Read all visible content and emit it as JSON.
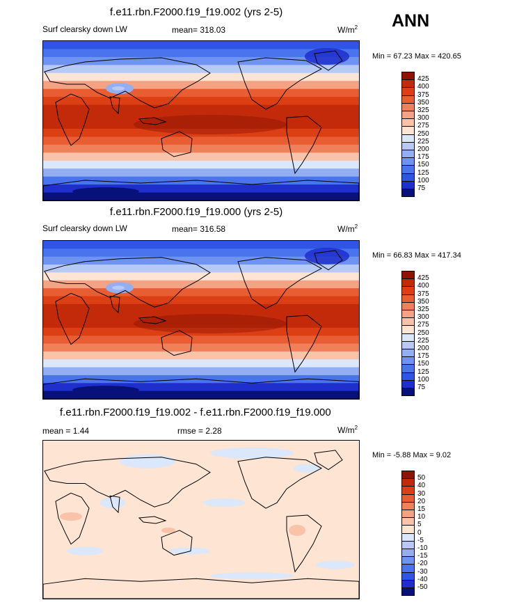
{
  "page_label": "ANN",
  "colors": {
    "warm_scale": [
      "#08107a",
      "#1f2fcc",
      "#2f55e6",
      "#4a74ee",
      "#6f93f0",
      "#93aef2",
      "#b6caf5",
      "#dbe7fa",
      "#fde4d3",
      "#f8c3a8",
      "#f4a283",
      "#ef8059",
      "#e95d33",
      "#dd3f14",
      "#c22a0a",
      "#8e1303"
    ],
    "diff_scale": [
      "#08107a",
      "#1f2fcc",
      "#2f55e6",
      "#4a74ee",
      "#6f93f0",
      "#93aef2",
      "#b6caf5",
      "#dbe7fa",
      "#fde4d3",
      "#f8c3a8",
      "#f4a283",
      "#ef8059",
      "#e95d33",
      "#dd3f14",
      "#c22a0a",
      "#8e1303"
    ]
  },
  "panels": [
    {
      "title": "f.e11.rbn.F2000.f19_f19.002 (yrs 2-5)",
      "variable": "Surf clearsky down LW",
      "stat": "mean= 318.03",
      "units": "W/m",
      "units_sup": "2",
      "minmax": "Min =  67.23 Max = 420.65",
      "levels": [
        "425",
        "400",
        "375",
        "350",
        "325",
        "300",
        "275",
        "250",
        "225",
        "200",
        "175",
        "150",
        "125",
        "100",
        "75"
      ]
    },
    {
      "title": "f.e11.rbn.F2000.f19_f19.000 (yrs 2-5)",
      "variable": "Surf clearsky down LW",
      "stat": "mean= 316.58",
      "units": "W/m",
      "units_sup": "2",
      "minmax": "Min =  66.83 Max = 417.34",
      "levels": [
        "425",
        "400",
        "375",
        "350",
        "325",
        "300",
        "275",
        "250",
        "225",
        "200",
        "175",
        "150",
        "125",
        "100",
        "75"
      ]
    },
    {
      "title": "f.e11.rbn.F2000.f19_f19.002 - f.e11.rbn.F2000.f19_f19.000",
      "variable": "mean =   1.44",
      "stat": "rmse =   2.28",
      "units": "W/m",
      "units_sup": "2",
      "minmax": "Min =  -5.88 Max =   9.02",
      "levels": [
        "50",
        "40",
        "30",
        "20",
        "15",
        "10",
        "5",
        "0",
        "-5",
        "-10",
        "-15",
        "-20",
        "-30",
        "-40",
        "-50"
      ]
    }
  ]
}
